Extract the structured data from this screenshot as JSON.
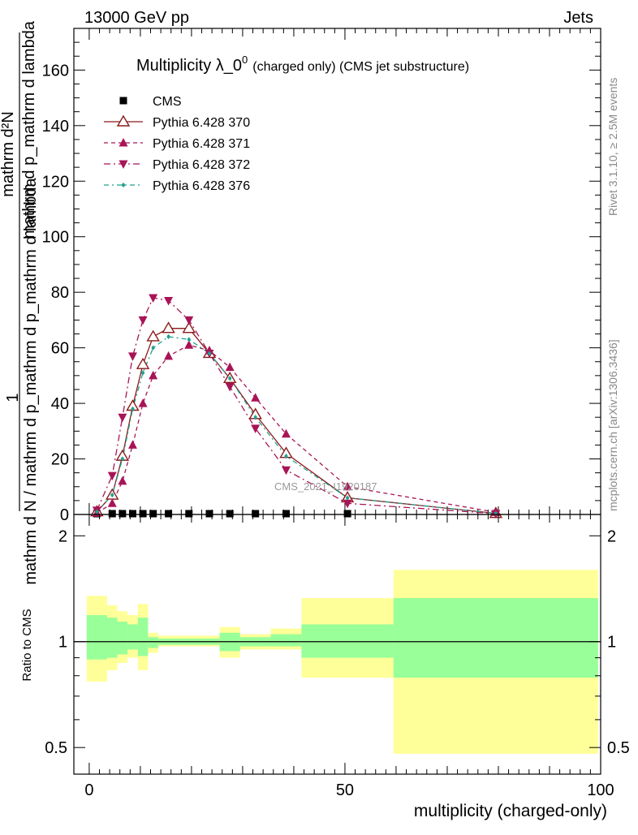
{
  "header": {
    "left": "13000 GeV pp",
    "right": "Jets"
  },
  "side_labels": {
    "rivet": "Rivet 3.1.10, ≥ 2.5M events",
    "mcplots": "mcplots.cern.ch [arXiv:1306.3436]"
  },
  "watermark": "CMS_2021_I1920187",
  "chart_data": [
    {
      "type": "line",
      "title": "Multiplicity λ_0",
      "title_sup": "0",
      "title_suffix": "(charged only) (CMS jet substructure)",
      "ylabel_top": "1",
      "ylabel_numerator": "mathrm d²N",
      "ylabel_denominator": "mathrm d N / mathrm d p_mathrm d p_mathrm d lambda",
      "ylabel_stacked_numerator": "mathrm d p_mathrm d lambda",
      "ylim": [
        0,
        175
      ],
      "yticks": [
        0,
        20,
        40,
        60,
        80,
        100,
        120,
        140,
        160
      ],
      "xlim": [
        -3,
        100
      ],
      "legend_position": "top-left",
      "series": [
        {
          "name": "CMS",
          "style": "data-square",
          "color": "#000000",
          "x": [
            1.5,
            4.5,
            6.5,
            8.5,
            10.5,
            12.5,
            15.5,
            19.5,
            23.5,
            27.5,
            32.5,
            38.5,
            50.5
          ],
          "y": [
            0.2,
            0.2,
            0.2,
            0.2,
            0.2,
            0.2,
            0.2,
            0.2,
            0.2,
            0.2,
            0.2,
            0.2,
            0.2
          ]
        },
        {
          "name": "Pythia 6.428 370",
          "style": "solid-open-triangle-up",
          "color": "#8b1a1a",
          "x": [
            1.5,
            4.5,
            6.5,
            8.5,
            10.5,
            12.5,
            15.5,
            19.5,
            23.5,
            27.5,
            32.5,
            38.5,
            50.5,
            79.5
          ],
          "y": [
            1,
            7,
            21,
            39,
            54,
            64,
            67,
            67,
            58,
            49,
            36,
            22,
            6,
            0.4
          ]
        },
        {
          "name": "Pythia 6.428 371",
          "style": "dashed-filled-triangle-up",
          "color": "#a81456",
          "x": [
            1.5,
            4.5,
            6.5,
            8.5,
            10.5,
            12.5,
            15.5,
            19.5,
            23.5,
            27.5,
            32.5,
            38.5,
            50.5,
            79.5
          ],
          "y": [
            0.5,
            4,
            12,
            25,
            40,
            50,
            57,
            61,
            59,
            53,
            42,
            29,
            10,
            0.8
          ]
        },
        {
          "name": "Pythia 6.428 372",
          "style": "dashdot-filled-triangle-down",
          "color": "#a81456",
          "x": [
            1.5,
            4.5,
            6.5,
            8.5,
            10.5,
            12.5,
            15.5,
            19.5,
            23.5,
            27.5,
            32.5,
            38.5,
            50.5,
            79.5
          ],
          "y": [
            1.5,
            14,
            35,
            57,
            70,
            78,
            77,
            70,
            58,
            46,
            31,
            16,
            4,
            0.3
          ]
        },
        {
          "name": "Pythia 6.428 376",
          "style": "dashdot-small-dot",
          "color": "#20a090",
          "x": [
            1.5,
            4.5,
            6.5,
            8.5,
            10.5,
            12.5,
            15.5,
            19.5,
            23.5,
            27.5,
            32.5,
            38.5,
            50.5,
            79.5
          ],
          "y": [
            1,
            7,
            20,
            38,
            51,
            60,
            64,
            63,
            58,
            49,
            35,
            21,
            6,
            0.4
          ]
        }
      ]
    },
    {
      "type": "area",
      "ylabel": "Ratio to CMS",
      "xlabel": "multiplicity (charged-only)",
      "xlim": [
        -3,
        100
      ],
      "xticks": [
        0,
        50,
        100
      ],
      "ylim": [
        0.42,
        2.3
      ],
      "yticks": [
        0.5,
        1,
        2
      ],
      "reference_line": 1,
      "bands": [
        {
          "x0": -0.5,
          "x1": 3.5,
          "yellow": [
            0.77,
            1.35
          ],
          "green": [
            0.89,
            1.19
          ]
        },
        {
          "x0": 3.5,
          "x1": 5.5,
          "yellow": [
            0.83,
            1.27
          ],
          "green": [
            0.9,
            1.17
          ]
        },
        {
          "x0": 5.5,
          "x1": 7.5,
          "yellow": [
            0.87,
            1.22
          ],
          "green": [
            0.92,
            1.14
          ]
        },
        {
          "x0": 7.5,
          "x1": 9.5,
          "yellow": [
            0.9,
            1.19
          ],
          "green": [
            0.95,
            1.12
          ]
        },
        {
          "x0": 9.5,
          "x1": 11.5,
          "yellow": [
            0.83,
            1.28
          ],
          "green": [
            0.91,
            1.17
          ]
        },
        {
          "x0": 11.5,
          "x1": 13.5,
          "yellow": [
            0.93,
            1.06
          ],
          "green": [
            0.96,
            1.03
          ]
        },
        {
          "x0": 13.5,
          "x1": 25.5,
          "yellow": [
            0.97,
            1.04
          ],
          "green": [
            0.98,
            1.02
          ]
        },
        {
          "x0": 25.5,
          "x1": 29.5,
          "yellow": [
            0.9,
            1.1
          ],
          "green": [
            0.94,
            1.06
          ]
        },
        {
          "x0": 29.5,
          "x1": 35.5,
          "yellow": [
            0.95,
            1.05
          ],
          "green": [
            0.97,
            1.03
          ]
        },
        {
          "x0": 35.5,
          "x1": 41.5,
          "yellow": [
            0.95,
            1.09
          ],
          "green": [
            0.97,
            1.05
          ]
        },
        {
          "x0": 41.5,
          "x1": 59.5,
          "yellow": [
            0.79,
            1.33
          ],
          "green": [
            0.9,
            1.12
          ]
        },
        {
          "x0": 59.5,
          "x1": 99.5,
          "yellow": [
            0.48,
            1.6
          ],
          "green": [
            0.79,
            1.33
          ]
        }
      ]
    }
  ]
}
